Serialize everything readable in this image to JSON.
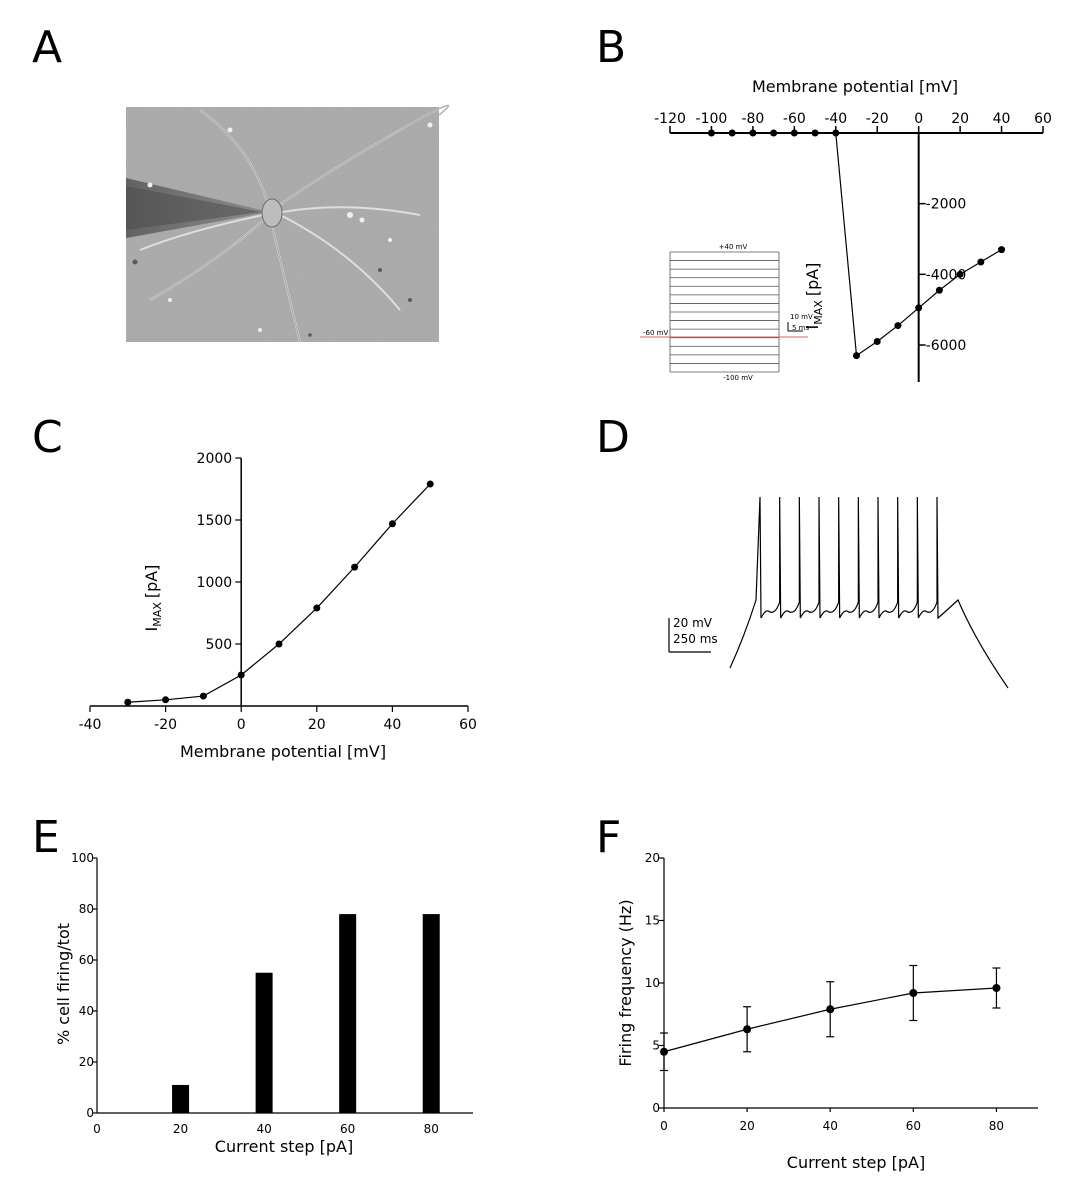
{
  "panels": {
    "A": {
      "letter": "A"
    },
    "B": {
      "letter": "B"
    },
    "C": {
      "letter": "C"
    },
    "D": {
      "letter": "D"
    },
    "E": {
      "letter": "E"
    },
    "F": {
      "letter": "F"
    }
  },
  "colors": {
    "ink": "#000000",
    "holding_line": "#e06060",
    "photo_bg": "#a9a9a9"
  },
  "inset_B": {
    "top_label": "+40 mV",
    "bottom_label": "-100 mV",
    "holding_label": "-60 mV",
    "scale_v": "10 mV",
    "scale_t": "5 ms"
  },
  "scale_D": {
    "v": "20 mV",
    "t": "250 ms"
  },
  "chart_data": [
    {
      "panel": "B",
      "type": "line",
      "xlabel": "Membrane potential [mV]",
      "ylabel": "I",
      "ylabel_sub": "MAX",
      "ylabel_unit": "[pA]",
      "xlim": [
        -120,
        60
      ],
      "ylim": [
        -7200,
        0
      ],
      "xticks": [
        -120,
        -100,
        -80,
        -60,
        -40,
        -20,
        0,
        20,
        40,
        60
      ],
      "yticks": [
        -2000,
        -4000,
        -6000
      ],
      "x": [
        -100,
        -90,
        -80,
        -70,
        -60,
        -50,
        -40,
        -30,
        -20,
        -10,
        0,
        10,
        20,
        30,
        40
      ],
      "y": [
        0,
        0,
        0,
        0,
        0,
        0,
        0,
        -6300,
        -5900,
        -5450,
        -4950,
        -4450,
        -4000,
        -3650,
        -3300
      ]
    },
    {
      "panel": "C",
      "type": "line",
      "xlabel": "Membrane potential [mV]",
      "ylabel": "I",
      "ylabel_sub": "MAX",
      "ylabel_unit": "[pA]",
      "xlim": [
        -40,
        60
      ],
      "ylim": [
        0,
        2000
      ],
      "xticks": [
        -40,
        -20,
        0,
        20,
        40,
        60
      ],
      "yticks": [
        500,
        1000,
        1500,
        2000
      ],
      "x": [
        -30,
        -20,
        -10,
        0,
        10,
        20,
        30,
        40,
        50
      ],
      "y": [
        30,
        50,
        80,
        250,
        500,
        790,
        1120,
        1470,
        1790
      ]
    },
    {
      "panel": "D",
      "type": "line",
      "spike_count": 10
    },
    {
      "panel": "E",
      "type": "bar",
      "xlabel": "Current step [pA]",
      "ylabel": "% cell firing/tot",
      "xlim": [
        0,
        90
      ],
      "ylim": [
        0,
        100
      ],
      "xticks": [
        0,
        20,
        40,
        60,
        80
      ],
      "yticks": [
        0,
        20,
        40,
        60,
        80,
        100
      ],
      "categories": [
        20,
        40,
        60,
        80
      ],
      "values": [
        11,
        55,
        78,
        78
      ]
    },
    {
      "panel": "F",
      "type": "line",
      "xlabel": "Current step [pA]",
      "ylabel": "Firing frequency (Hz)",
      "xlim": [
        0,
        90
      ],
      "ylim": [
        0,
        20
      ],
      "xticks": [
        0,
        20,
        40,
        60,
        80
      ],
      "yticks": [
        0,
        5,
        10,
        15,
        20
      ],
      "x": [
        0,
        20,
        40,
        60,
        80
      ],
      "y": [
        4.5,
        6.3,
        7.9,
        9.2,
        9.6
      ],
      "err": [
        1.5,
        1.8,
        2.2,
        2.2,
        1.6
      ]
    }
  ]
}
